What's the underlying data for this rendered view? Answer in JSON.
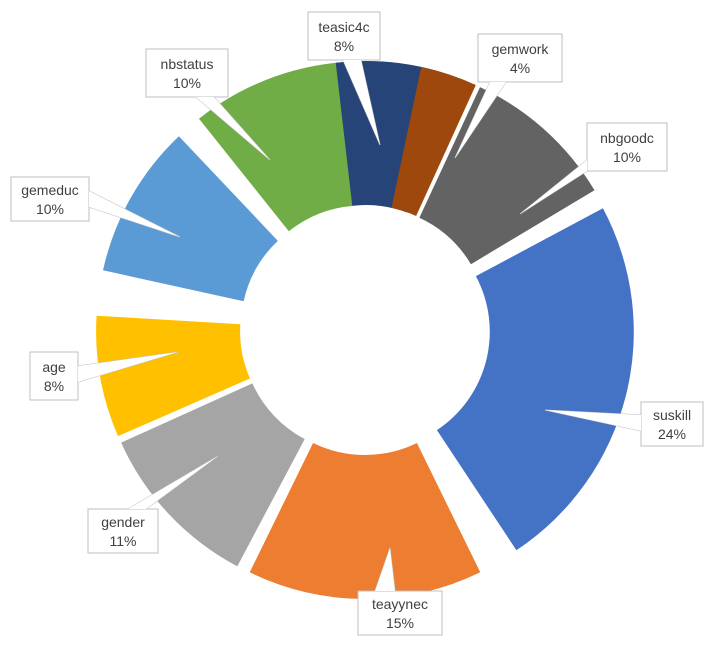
{
  "chart_data": {
    "type": "pie",
    "subtype": "doughnut",
    "title": "",
    "slices": [
      {
        "label": "suskill",
        "value": 24,
        "display": "24%",
        "color": "#4472C4"
      },
      {
        "label": "teayynec",
        "value": 15,
        "display": "15%",
        "color": "#ED7D31"
      },
      {
        "label": "gender",
        "value": 11,
        "display": "11%",
        "color": "#A5A5A5"
      },
      {
        "label": "age",
        "value": 8,
        "display": "8%",
        "color": "#FFC000"
      },
      {
        "label": "gemeduc",
        "value": 10,
        "display": "10%",
        "color": "#5B9BD5"
      },
      {
        "label": "nbstatus",
        "value": 10,
        "display": "10%",
        "color": "#70AD47"
      },
      {
        "label": "teasic4c",
        "value": 8,
        "display": "8%",
        "color": "#264478"
      },
      {
        "label": "gemwork",
        "value": 4,
        "display": "4%",
        "color": "#9E480E"
      },
      {
        "label": "nbgoodc",
        "value": 10,
        "display": "10%",
        "color": "#636363"
      }
    ],
    "legend": "none",
    "data_labels": "callouts"
  }
}
